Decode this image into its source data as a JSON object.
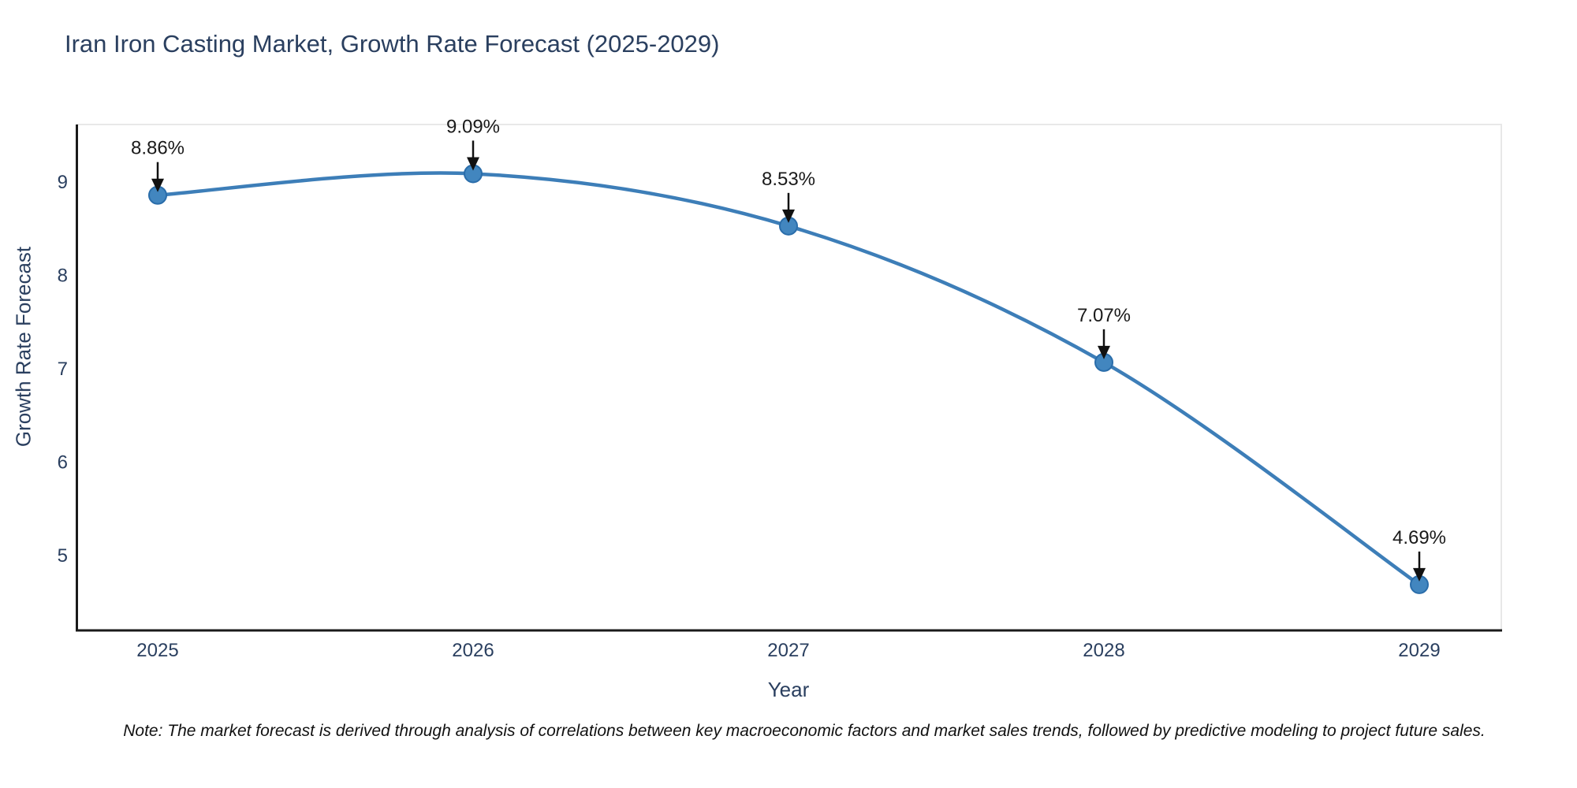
{
  "figure": {
    "colors": {
      "background": "#ffffff",
      "title_text": "#2a3f5f",
      "axis_text": "#2a3f5f",
      "spine": "#1a1a1a",
      "plot_border": "#e8e8e8",
      "line": "#3d7eb8",
      "marker_fill": "#4286bf",
      "marker_edge": "#2a6daa",
      "arrow": "#111111",
      "annotation_text": "#1a1a1a"
    }
  },
  "chart_data": {
    "type": "line",
    "title": "Iran Iron Casting Market, Growth Rate Forecast (2025-2029)",
    "xlabel": "Year",
    "ylabel": "Growth Rate Forecast",
    "x": [
      2025,
      2026,
      2027,
      2028,
      2029
    ],
    "values": [
      8.86,
      9.09,
      8.53,
      7.07,
      4.69
    ],
    "annotations": [
      "8.86%",
      "9.09%",
      "8.53%",
      "7.07%",
      "4.69%"
    ],
    "series_name": "Growth Rate Forecast",
    "xticks": [
      2025,
      2026,
      2027,
      2028,
      2029
    ],
    "yticks": [
      9,
      8,
      7,
      6,
      5
    ],
    "xlim": [
      2024.75,
      2029.25
    ],
    "ylim": [
      4.2,
      9.6
    ],
    "grid": false,
    "legend": null,
    "line_shape": "spline",
    "note": "Note: The market forecast is derived through analysis of correlations between key macroeconomic factors and market sales trends, followed by predictive modeling to project future sales."
  }
}
